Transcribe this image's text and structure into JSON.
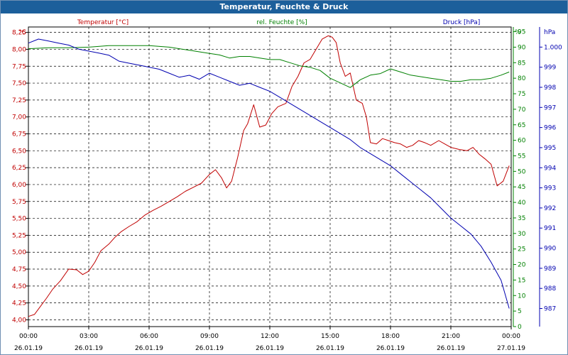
{
  "window": {
    "title": "Temperatur, Feuchte & Druck"
  },
  "colors": {
    "temperature": "#c00000",
    "humidity": "#008000",
    "pressure": "#0000b0",
    "titlebar": "#1c5f9b"
  },
  "chart_data": {
    "type": "line",
    "legend": {
      "temperature": "Temperatur [°C]",
      "humidity": "rel. Feuchte [%]",
      "pressure": "Druck [hPa]"
    },
    "axes": {
      "left": {
        "unit": "°C",
        "ylim": [
          3.9,
          8.33
        ],
        "ticks": [
          "8,25",
          "8,00",
          "7,75",
          "7,50",
          "7,25",
          "7,00",
          "6,75",
          "6,50",
          "6,25",
          "6,00",
          "5,75",
          "5,50",
          "5,25",
          "5,00",
          "4,75",
          "4,50",
          "4,25",
          "4,00"
        ]
      },
      "right1": {
        "unit": "%",
        "ylim": [
          0,
          96.5
        ],
        "ticks": [
          "95",
          "90",
          "85",
          "80",
          "75",
          "70",
          "65",
          "60",
          "55",
          "50",
          "45",
          "40",
          "35",
          "30",
          "25",
          "20",
          "15",
          "10",
          "5",
          "0"
        ]
      },
      "right2": {
        "unit": "hPa",
        "ylim": [
          986.1,
          1001.0
        ],
        "ticks": [
          "1.000",
          "999",
          "998",
          "997",
          "996",
          "995",
          "994",
          "993",
          "992",
          "991",
          "990",
          "989",
          "988",
          "987"
        ]
      },
      "x": {
        "range_hours": [
          0,
          24
        ],
        "ticks": [
          {
            "time": "00:00",
            "date": "26.01.19"
          },
          {
            "time": "03:00",
            "date": "26.01.19"
          },
          {
            "time": "06:00",
            "date": "26.01.19"
          },
          {
            "time": "09:00",
            "date": "26.01.19"
          },
          {
            "time": "12:00",
            "date": "26.01.19"
          },
          {
            "time": "15:00",
            "date": "26.01.19"
          },
          {
            "time": "18:00",
            "date": "26.01.19"
          },
          {
            "time": "21:00",
            "date": "26.01.19"
          },
          {
            "time": "00:00",
            "date": "27.01.19"
          }
        ]
      }
    },
    "grid": true,
    "series": [
      {
        "name": "Temperatur [°C]",
        "axis": "left",
        "color": "#c00000",
        "x": [
          0,
          0.3,
          0.6,
          0.9,
          1.2,
          1.6,
          2.0,
          2.4,
          2.7,
          3.0,
          3.3,
          3.6,
          4.0,
          4.3,
          4.6,
          5.0,
          5.4,
          5.8,
          6.2,
          6.6,
          7.0,
          7.4,
          7.8,
          8.2,
          8.6,
          9.0,
          9.3,
          9.6,
          9.85,
          10.1,
          10.4,
          10.7,
          10.9,
          11.2,
          11.5,
          11.8,
          12.1,
          12.4,
          12.8,
          13.1,
          13.4,
          13.7,
          14.0,
          14.3,
          14.6,
          14.9,
          15.1,
          15.3,
          15.5,
          15.75,
          16.0,
          16.3,
          16.6,
          16.8,
          17.0,
          17.3,
          17.6,
          17.9,
          18.2,
          18.5,
          18.8,
          19.1,
          19.4,
          19.7,
          20.0,
          20.4,
          20.7,
          21.0,
          21.4,
          21.8,
          22.1,
          22.4,
          22.7,
          23.0,
          23.3,
          23.6,
          23.9
        ],
        "y": [
          4.05,
          4.08,
          4.2,
          4.32,
          4.45,
          4.58,
          4.75,
          4.74,
          4.67,
          4.72,
          4.85,
          5.02,
          5.12,
          5.22,
          5.3,
          5.38,
          5.45,
          5.55,
          5.62,
          5.68,
          5.75,
          5.82,
          5.9,
          5.96,
          6.02,
          6.15,
          6.22,
          6.1,
          5.95,
          6.05,
          6.4,
          6.8,
          6.9,
          7.18,
          6.85,
          6.88,
          7.05,
          7.15,
          7.2,
          7.45,
          7.6,
          7.8,
          7.85,
          8.0,
          8.15,
          8.2,
          8.18,
          8.1,
          7.8,
          7.6,
          7.65,
          7.25,
          7.2,
          7.0,
          6.62,
          6.6,
          6.68,
          6.65,
          6.62,
          6.6,
          6.55,
          6.58,
          6.65,
          6.62,
          6.58,
          6.65,
          6.6,
          6.55,
          6.52,
          6.5,
          6.55,
          6.45,
          6.38,
          6.3,
          5.98,
          6.05,
          6.28
        ]
      },
      {
        "name": "rel. Feuchte [%]",
        "axis": "right1",
        "color": "#008000",
        "x": [
          0,
          1,
          2,
          3,
          4,
          5,
          6,
          7,
          8,
          9,
          9.5,
          10,
          10.5,
          11,
          11.5,
          12,
          12.5,
          13,
          13.5,
          14,
          14.5,
          15,
          15.5,
          16,
          16.5,
          17,
          17.5,
          18,
          18.5,
          19,
          19.5,
          20,
          20.5,
          21,
          21.5,
          22,
          22.5,
          23,
          23.5,
          23.9
        ],
        "y": [
          89.5,
          89.8,
          89.8,
          90,
          90.5,
          90.5,
          90.5,
          90,
          89,
          88,
          87.5,
          86.5,
          87,
          87,
          86.5,
          86,
          86,
          85,
          84,
          83.5,
          82.5,
          80,
          78.5,
          77,
          79.5,
          81,
          81.5,
          83,
          82,
          81,
          80.5,
          80,
          79.5,
          79,
          79,
          79.5,
          79.5,
          80,
          81,
          82
        ]
      },
      {
        "name": "Druck [hPa]",
        "axis": "right2",
        "color": "#0000b0",
        "x": [
          0,
          0.5,
          1,
          1.5,
          2,
          2.5,
          3,
          3.5,
          4,
          4.5,
          5,
          5.5,
          6,
          6.5,
          7,
          7.5,
          8,
          8.5,
          9,
          9.5,
          10,
          10.5,
          11,
          11.5,
          12,
          12.5,
          13,
          13.5,
          14,
          14.5,
          15,
          15.5,
          16,
          16.5,
          17,
          17.5,
          18,
          18.5,
          19,
          19.5,
          20,
          20.5,
          21,
          21.5,
          22,
          22.5,
          23,
          23.5,
          23.9
        ],
        "y": [
          1000.2,
          1000.4,
          1000.3,
          1000.2,
          1000.1,
          999.9,
          999.8,
          999.7,
          999.6,
          999.3,
          999.2,
          999.1,
          999.0,
          998.9,
          998.7,
          998.5,
          998.6,
          998.4,
          998.7,
          998.5,
          998.3,
          998.1,
          998.2,
          998.0,
          997.8,
          997.5,
          997.2,
          996.9,
          996.6,
          996.3,
          996.0,
          995.7,
          995.4,
          995.0,
          994.7,
          994.4,
          994.1,
          993.7,
          993.3,
          992.9,
          992.5,
          992.0,
          991.5,
          991.1,
          990.7,
          990.1,
          989.3,
          988.4,
          987.0
        ]
      }
    ]
  }
}
